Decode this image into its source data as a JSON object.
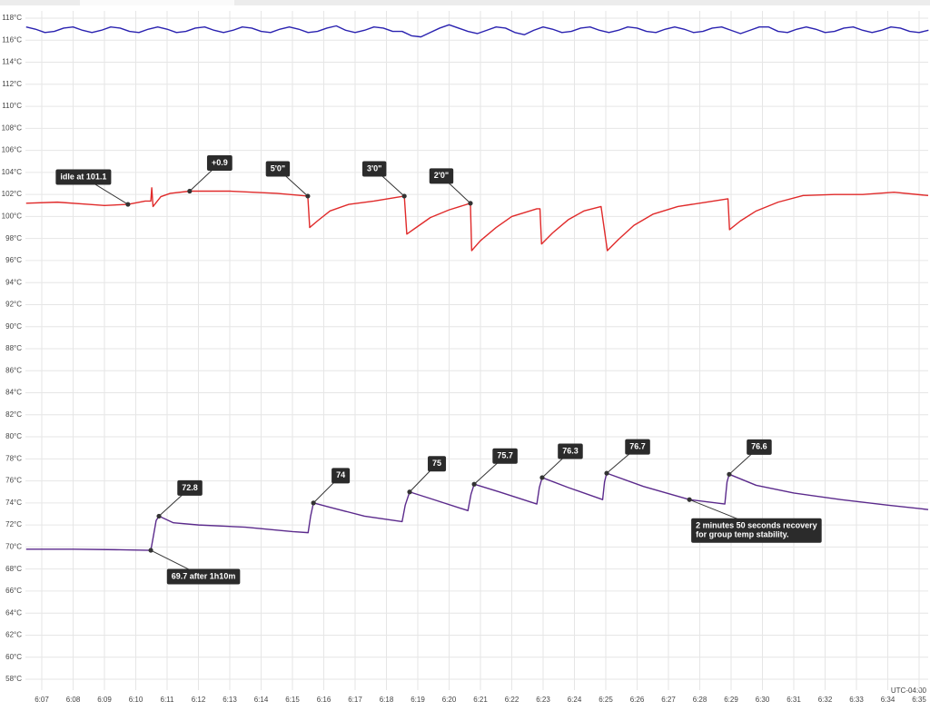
{
  "chart_data": {
    "type": "line",
    "xlim": [
      6.478,
      35.29
    ],
    "ylim": [
      57.01,
      118.66
    ],
    "grid": true,
    "timezone": "UTC-04:00",
    "xticks": [
      {
        "value": 7,
        "label": "6:07"
      },
      {
        "value": 8,
        "label": "6:08"
      },
      {
        "value": 9,
        "label": "6:09"
      },
      {
        "value": 10,
        "label": "6:10"
      },
      {
        "value": 11,
        "label": "6:11"
      },
      {
        "value": 12,
        "label": "6:12"
      },
      {
        "value": 13,
        "label": "6:13"
      },
      {
        "value": 14,
        "label": "6:14"
      },
      {
        "value": 15,
        "label": "6:15"
      },
      {
        "value": 16,
        "label": "6:16"
      },
      {
        "value": 17,
        "label": "6:17"
      },
      {
        "value": 18,
        "label": "6:18"
      },
      {
        "value": 19,
        "label": "6:19"
      },
      {
        "value": 20,
        "label": "6:20"
      },
      {
        "value": 21,
        "label": "6:21"
      },
      {
        "value": 22,
        "label": "6:22"
      },
      {
        "value": 23,
        "label": "6:23"
      },
      {
        "value": 24,
        "label": "6:24"
      },
      {
        "value": 25,
        "label": "6:25"
      },
      {
        "value": 26,
        "label": "6:26"
      },
      {
        "value": 27,
        "label": "6:27"
      },
      {
        "value": 28,
        "label": "6:28"
      },
      {
        "value": 29,
        "label": "6:29"
      },
      {
        "value": 30,
        "label": "6:30"
      },
      {
        "value": 31,
        "label": "6:31"
      },
      {
        "value": 32,
        "label": "6:32"
      },
      {
        "value": 33,
        "label": "6:33"
      },
      {
        "value": 34,
        "label": "6:34"
      },
      {
        "value": 35,
        "label": "6:35"
      }
    ],
    "yticks": [
      {
        "value": 58,
        "label": "58°C"
      },
      {
        "value": 60,
        "label": "60°C"
      },
      {
        "value": 62,
        "label": "62°C"
      },
      {
        "value": 64,
        "label": "64°C"
      },
      {
        "value": 66,
        "label": "66°C"
      },
      {
        "value": 68,
        "label": "68°C"
      },
      {
        "value": 70,
        "label": "70°C"
      },
      {
        "value": 72,
        "label": "72°C"
      },
      {
        "value": 74,
        "label": "74°C"
      },
      {
        "value": 76,
        "label": "76°C"
      },
      {
        "value": 78,
        "label": "78°C"
      },
      {
        "value": 80,
        "label": "80°C"
      },
      {
        "value": 82,
        "label": "82°C"
      },
      {
        "value": 84,
        "label": "84°C"
      },
      {
        "value": 86,
        "label": "86°C"
      },
      {
        "value": 88,
        "label": "88°C"
      },
      {
        "value": 90,
        "label": "90°C"
      },
      {
        "value": 92,
        "label": "92°C"
      },
      {
        "value": 94,
        "label": "94°C"
      },
      {
        "value": 96,
        "label": "96°C"
      },
      {
        "value": 98,
        "label": "98°C"
      },
      {
        "value": 100,
        "label": "100°C"
      },
      {
        "value": 102,
        "label": "102°C"
      },
      {
        "value": 104,
        "label": "104°C"
      },
      {
        "value": 106,
        "label": "106°C"
      },
      {
        "value": 108,
        "label": "108°C"
      },
      {
        "value": 110,
        "label": "110°C"
      },
      {
        "value": 112,
        "label": "112°C"
      },
      {
        "value": 114,
        "label": "114°C"
      },
      {
        "value": 116,
        "label": "116°C"
      },
      {
        "value": 118,
        "label": "118°C"
      }
    ],
    "series": [
      {
        "color": "#2a22b0",
        "x": [
          6.5,
          6.8,
          7.1,
          7.4,
          7.7,
          8.0,
          8.3,
          8.6,
          8.9,
          9.2,
          9.5,
          9.8,
          10.1,
          10.4,
          10.7,
          11.0,
          11.3,
          11.6,
          11.9,
          12.2,
          12.5,
          12.8,
          13.1,
          13.4,
          13.7,
          14.0,
          14.3,
          14.6,
          14.9,
          15.2,
          15.5,
          15.8,
          16.1,
          16.4,
          16.7,
          17.0,
          17.3,
          17.6,
          17.9,
          18.2,
          18.5,
          18.8,
          19.1,
          19.4,
          19.7,
          20.0,
          20.3,
          20.6,
          20.9,
          21.2,
          21.5,
          21.8,
          22.1,
          22.4,
          22.7,
          23.0,
          23.3,
          23.6,
          23.9,
          24.2,
          24.5,
          24.8,
          25.1,
          25.4,
          25.7,
          26.0,
          26.3,
          26.6,
          26.9,
          27.2,
          27.5,
          27.8,
          28.1,
          28.4,
          28.7,
          29.0,
          29.3,
          29.6,
          29.9,
          30.2,
          30.5,
          30.8,
          31.1,
          31.4,
          31.7,
          32.0,
          32.3,
          32.6,
          32.9,
          33.2,
          33.5,
          33.8,
          34.1,
          34.4,
          34.7,
          35.0,
          35.3
        ],
        "values": [
          117.2,
          117.0,
          116.7,
          116.8,
          117.1,
          117.2,
          116.9,
          116.7,
          116.9,
          117.2,
          117.1,
          116.8,
          116.7,
          117.0,
          117.2,
          117.0,
          116.7,
          116.8,
          117.1,
          117.2,
          116.9,
          116.7,
          116.9,
          117.2,
          117.1,
          116.8,
          116.7,
          117.0,
          117.2,
          117.0,
          116.7,
          116.8,
          117.1,
          117.3,
          116.9,
          116.7,
          116.9,
          117.2,
          117.1,
          116.8,
          116.8,
          116.4,
          116.3,
          116.7,
          117.1,
          117.4,
          117.1,
          116.8,
          116.6,
          116.9,
          117.2,
          117.1,
          116.7,
          116.5,
          116.9,
          117.2,
          117.0,
          116.7,
          116.8,
          117.1,
          117.2,
          116.9,
          116.7,
          116.9,
          117.2,
          117.1,
          116.8,
          116.7,
          117.0,
          117.2,
          117.0,
          116.7,
          116.8,
          117.1,
          117.2,
          116.9,
          116.6,
          116.9,
          117.2,
          117.2,
          116.8,
          116.7,
          117.0,
          117.2,
          117.0,
          116.7,
          116.8,
          117.1,
          117.2,
          116.9,
          116.7,
          116.9,
          117.2,
          117.1,
          116.8,
          116.7,
          116.9
        ]
      },
      {
        "color": "#e02a2a",
        "x": [
          6.5,
          7.5,
          8.5,
          9.0,
          9.75,
          10.3,
          10.48,
          10.51,
          10.55,
          10.8,
          11.1,
          11.72,
          13,
          14.5,
          15.49,
          15.55,
          15.8,
          16.2,
          16.8,
          17.6,
          18.57,
          18.65,
          18.9,
          19.4,
          20,
          20.68,
          20.72,
          21.0,
          21.5,
          22.0,
          22.8,
          22.9,
          22.95,
          23.3,
          23.8,
          24.3,
          24.85,
          25.05,
          25.4,
          25.9,
          26.5,
          27.3,
          28.2,
          28.9,
          28.95,
          29.3,
          29.8,
          30.5,
          31.3,
          32.3,
          33.2,
          34.2,
          35.29
        ],
        "values": [
          101.2,
          101.3,
          101.1,
          101.0,
          101.1,
          101.4,
          101.4,
          102.6,
          100.9,
          101.8,
          102.1,
          102.3,
          102.3,
          102.1,
          101.85,
          99.0,
          99.6,
          100.5,
          101.1,
          101.4,
          101.85,
          98.4,
          98.9,
          99.9,
          100.6,
          101.2,
          96.9,
          97.8,
          99.0,
          100.0,
          100.7,
          100.7,
          97.5,
          98.5,
          99.7,
          100.5,
          100.9,
          96.9,
          97.9,
          99.2,
          100.2,
          100.9,
          101.3,
          101.6,
          98.8,
          99.6,
          100.5,
          101.3,
          101.9,
          102.0,
          102.0,
          102.2,
          101.9
        ]
      },
      {
        "color": "#5b2a8c",
        "x": [
          6.5,
          8,
          9.5,
          10.48,
          10.55,
          10.65,
          10.74,
          11.2,
          12,
          13.5,
          15.0,
          15.5,
          15.58,
          15.67,
          16.2,
          17.3,
          18.5,
          18.6,
          18.74,
          19.4,
          20.6,
          20.7,
          20.8,
          21.6,
          22.8,
          22.88,
          22.97,
          23.8,
          24.9,
          24.96,
          25.03,
          26.2,
          27.67,
          28.8,
          28.87,
          28.94,
          29.8,
          31,
          32.5,
          34,
          35.29
        ],
        "values": [
          69.8,
          69.8,
          69.75,
          69.7,
          70.8,
          72.4,
          72.8,
          72.2,
          72.0,
          71.8,
          71.4,
          71.3,
          72.8,
          74.0,
          73.6,
          72.8,
          72.3,
          73.8,
          75.0,
          74.4,
          73.3,
          74.8,
          75.7,
          75.0,
          73.9,
          75.4,
          76.3,
          75.4,
          74.3,
          75.9,
          76.7,
          75.5,
          74.3,
          73.9,
          75.9,
          76.6,
          75.6,
          74.9,
          74.3,
          73.8,
          73.4
        ]
      }
    ],
    "annotations": [
      {
        "text": "idle at 101.1",
        "x": 9.75,
        "y": 101.1
      },
      {
        "text": "+0.9",
        "x": 11.72,
        "y": 102.3
      },
      {
        "text": "5'0\"",
        "x": 15.49,
        "y": 101.85
      },
      {
        "text": "3'0\"",
        "x": 18.57,
        "y": 101.85
      },
      {
        "text": "2'0\"",
        "x": 20.68,
        "y": 101.2
      },
      {
        "text": "72.8",
        "x": 10.74,
        "y": 72.8
      },
      {
        "text": "69.7 after 1h10m",
        "x": 10.48,
        "y": 69.7
      },
      {
        "text": "74",
        "x": 15.67,
        "y": 74.0
      },
      {
        "text": "75",
        "x": 18.74,
        "y": 75.0
      },
      {
        "text": "75.7",
        "x": 20.8,
        "y": 75.7
      },
      {
        "text": "76.3",
        "x": 22.97,
        "y": 76.3
      },
      {
        "text": "76.7",
        "x": 25.03,
        "y": 76.7
      },
      {
        "text": "76.6",
        "x": 28.94,
        "y": 76.6
      },
      {
        "lines": [
          "2 minutes 50 seconds recovery",
          "for group temp stability."
        ],
        "x": 27.67,
        "y": 74.3
      }
    ]
  }
}
